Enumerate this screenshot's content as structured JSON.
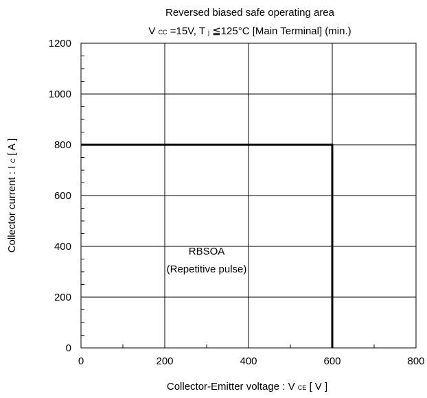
{
  "chart_data": {
    "type": "line",
    "title_line1": "Reversed biased safe operating area",
    "title_line2": {
      "v": "V",
      "v_sub": "CC",
      "eq": " =15V, T",
      "t_sub": "j",
      "rest": "≦125°C [Main Terminal] (min.)"
    },
    "xlabel": {
      "main": "Collector-Emitter voltage : V",
      "sub": "CE",
      "unit": "  [ V ]"
    },
    "ylabel": {
      "main": "Collector current : I",
      "sub": "C",
      "unit": "  [ A ]"
    },
    "xlim": [
      0,
      800
    ],
    "ylim": [
      0,
      1200
    ],
    "x_ticks": [
      0,
      200,
      400,
      600,
      800
    ],
    "y_ticks": [
      0,
      200,
      400,
      600,
      800,
      1000,
      1200
    ],
    "x_tick_labels": [
      "0",
      "200",
      "400",
      "600",
      "800"
    ],
    "y_tick_labels": [
      "0",
      "200",
      "400",
      "600",
      "800",
      "1000",
      "1200"
    ],
    "grid": true,
    "series": [
      {
        "x": [
          0,
          600,
          600
        ],
        "y": [
          800,
          800,
          0
        ]
      }
    ],
    "annotation": {
      "line1": "RBSOA",
      "line2": "(Repetitive pulse)",
      "x": 300,
      "y": 330
    }
  }
}
